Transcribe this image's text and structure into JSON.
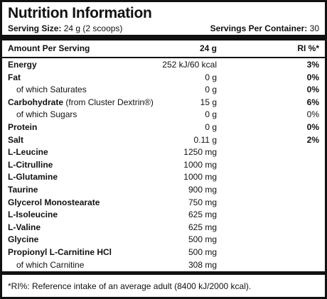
{
  "title": "Nutrition Information",
  "serving_size_label": "Serving Size:",
  "serving_size_value": "24 g (2 scoops)",
  "servings_per_container_label": "Servings Per Container:",
  "servings_per_container_value": "30",
  "header": {
    "col1": "Amount Per Serving",
    "col2": "24 g",
    "col3": "RI %*"
  },
  "rows": [
    {
      "name": "Energy",
      "value": "252 kJ/60 kcal",
      "ri": "3%"
    },
    {
      "name": "Fat",
      "value": "0 g",
      "ri": "0%"
    },
    {
      "name": "of which Saturates",
      "value": "0 g",
      "ri": "0%"
    },
    {
      "name": "Carbohydrate",
      "name_extra": "(from Cluster Dextrin®)",
      "value": "15 g",
      "ri": "6%"
    },
    {
      "name": "of which Sugars",
      "value": "0 g",
      "ri": "0%"
    },
    {
      "name": "Protein",
      "value": "0 g",
      "ri": "0%"
    },
    {
      "name": "Salt",
      "value": "0.11 g",
      "ri": "2%"
    },
    {
      "name": "L-Leucine",
      "value": "1250 mg",
      "ri": ""
    },
    {
      "name": "L-Citrulline",
      "value": "1000 mg",
      "ri": ""
    },
    {
      "name": "L-Glutamine",
      "value": "1000 mg",
      "ri": ""
    },
    {
      "name": "Taurine",
      "value": "900 mg",
      "ri": ""
    },
    {
      "name": "Glycerol Monostearate",
      "value": "750 mg",
      "ri": ""
    },
    {
      "name": "L-Isoleucine",
      "value": "625 mg",
      "ri": ""
    },
    {
      "name": "L-Valine",
      "value": "625 mg",
      "ri": ""
    },
    {
      "name": "Glycine",
      "value": "500 mg",
      "ri": ""
    },
    {
      "name": "Propionyl L-Carnitine HCl",
      "value": "500 mg",
      "ri": ""
    },
    {
      "name": "of which Carnitine",
      "value": "308 mg",
      "ri": ""
    }
  ],
  "footnote": "*RI%: Reference intake of an average adult (8400 kJ/2000 kcal)."
}
